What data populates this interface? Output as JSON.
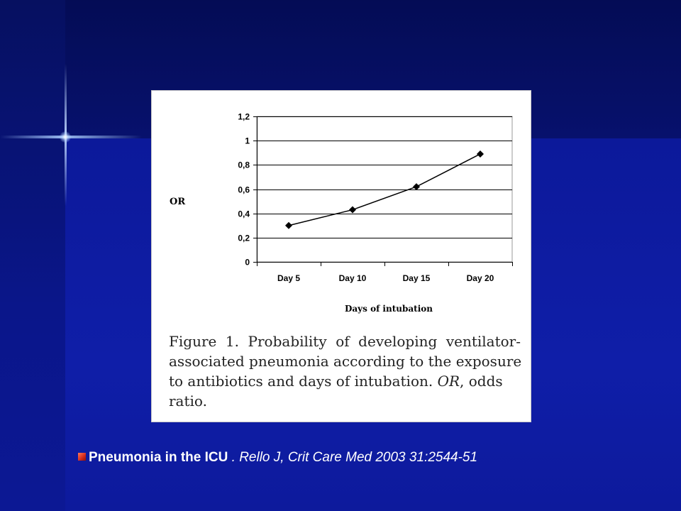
{
  "slide": {
    "accent": "#d2281a",
    "citation": {
      "bold": "Pneumonia in the ICU",
      "rest": " . Rello J, Crit Care Med  2003 31:2544-51"
    }
  },
  "figure": {
    "caption_lines": [
      "Figure 1. Probability of developing ventilator-",
      "associated pneumonia according to the exposure",
      "to antibiotics and days of intubation.",
      "ratio."
    ],
    "caption_or": "OR",
    "caption_odds": ", odds"
  },
  "chart_data": {
    "type": "line",
    "title": "",
    "xlabel": "Days of intubation",
    "ylabel": "OR",
    "categories": [
      "Day  5",
      "Day 10",
      "Day 15",
      "Day 20"
    ],
    "series": [
      {
        "values": [
          0.3,
          0.43,
          0.62,
          0.89
        ]
      }
    ],
    "ylim": [
      0,
      1.2
    ],
    "yticks": [
      0,
      0.2,
      0.4,
      0.6,
      0.8,
      1,
      1.2
    ],
    "ytick_labels": [
      "0",
      "0,2",
      "0,4",
      "0,6",
      "0,8",
      "1",
      "1,2"
    ],
    "grid": true,
    "marker": "diamond",
    "line_color": "#000000"
  }
}
